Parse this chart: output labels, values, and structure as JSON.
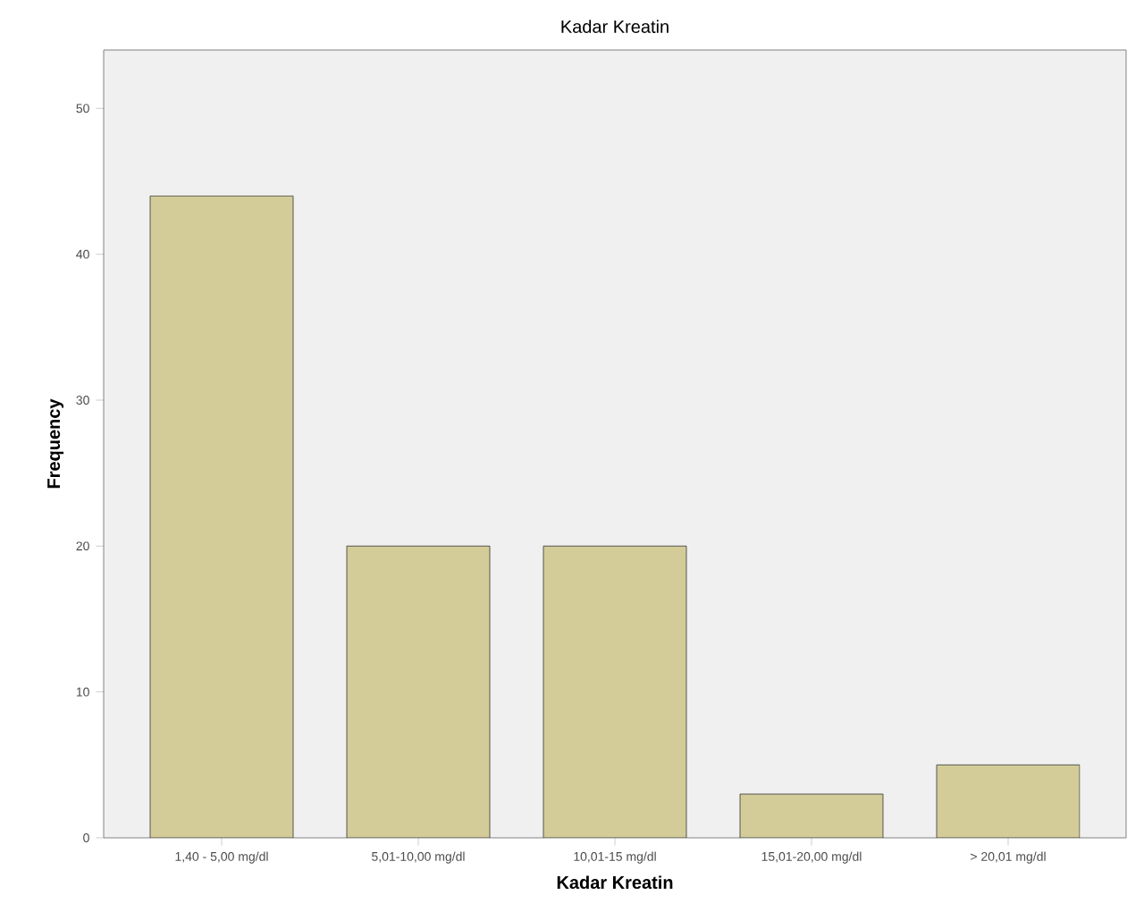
{
  "chart_data": {
    "type": "bar",
    "title": "Kadar Kreatin",
    "xlabel": "Kadar Kreatin",
    "ylabel": "Frequency",
    "categories": [
      "1,40 - 5,00 mg/dl",
      "5,01-10,00 mg/dl",
      "10,01-15 mg/dl",
      "15,01-20,00 mg/dl",
      "> 20,01 mg/dl"
    ],
    "values": [
      44,
      20,
      20,
      3,
      5
    ],
    "color": "#d3cc99",
    "ylim": [
      0,
      54
    ],
    "yticks": [
      0,
      10,
      20,
      30,
      40,
      50
    ]
  }
}
